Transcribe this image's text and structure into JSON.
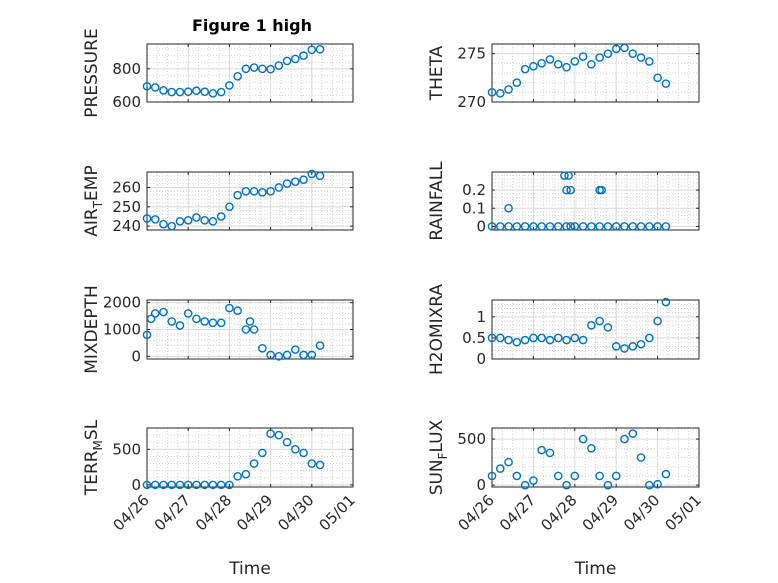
{
  "figure": {
    "title": "Figure 1 high",
    "time_label": "Time"
  },
  "x_ticks": [
    "04/26",
    "04/27",
    "04/28",
    "04/29",
    "04/30",
    "05/01"
  ],
  "chart_data": [
    {
      "type": "scatter",
      "ylabel": "PRESSURE",
      "ylim": [
        600,
        950
      ],
      "yticks": [
        600,
        800
      ],
      "xlim": [
        0,
        5
      ],
      "grid": "on",
      "x": [
        0.0,
        0.2,
        0.4,
        0.6,
        0.8,
        1.0,
        1.2,
        1.4,
        1.6,
        1.8,
        2.0,
        2.2,
        2.4,
        2.6,
        2.8,
        3.0,
        3.2,
        3.4,
        3.6,
        3.8,
        4.0,
        4.2
      ],
      "y": [
        695,
        688,
        670,
        660,
        660,
        662,
        668,
        662,
        652,
        660,
        700,
        755,
        800,
        808,
        800,
        798,
        820,
        848,
        860,
        880,
        915,
        918
      ]
    },
    {
      "type": "scatter",
      "ylabel": "THETA",
      "ylim": [
        270,
        276
      ],
      "yticks": [
        270,
        275
      ],
      "xlim": [
        0,
        5
      ],
      "grid": "on",
      "x": [
        0.0,
        0.2,
        0.4,
        0.6,
        0.8,
        1.0,
        1.2,
        1.4,
        1.6,
        1.8,
        2.0,
        2.2,
        2.4,
        2.6,
        2.8,
        3.0,
        3.2,
        3.4,
        3.6,
        3.8,
        4.0,
        4.2
      ],
      "y": [
        271.0,
        270.9,
        271.3,
        272.0,
        273.4,
        273.7,
        274.0,
        274.4,
        273.9,
        273.6,
        274.2,
        274.7,
        273.9,
        274.6,
        275.0,
        275.5,
        275.6,
        275.0,
        274.6,
        274.2,
        272.5,
        271.9
      ]
    },
    {
      "type": "scatter",
      "ylabel": "AIR_TEMP",
      "ylim": [
        238,
        268
      ],
      "yticks": [
        240,
        250,
        260
      ],
      "xlim": [
        0,
        5
      ],
      "grid": "on",
      "x": [
        0.0,
        0.2,
        0.4,
        0.6,
        0.8,
        1.0,
        1.2,
        1.4,
        1.6,
        1.8,
        2.0,
        2.2,
        2.4,
        2.6,
        2.8,
        3.0,
        3.2,
        3.4,
        3.6,
        3.8,
        4.0,
        4.2
      ],
      "y": [
        244,
        243.5,
        241,
        240,
        242.5,
        243,
        244.5,
        243,
        242.5,
        245,
        250,
        256,
        258,
        258,
        257.5,
        258,
        260,
        262,
        263,
        264,
        267,
        266
      ]
    },
    {
      "type": "scatter",
      "ylabel": "RAINFALL",
      "ylim": [
        -0.02,
        0.3
      ],
      "yticks": [
        0,
        0.1,
        0.2
      ],
      "xlim": [
        0,
        5
      ],
      "grid": "on",
      "x": [
        0.0,
        0.2,
        0.4,
        0.6,
        0.8,
        1.0,
        1.2,
        1.4,
        1.6,
        1.8,
        1.9,
        2.0,
        2.2,
        2.4,
        2.6,
        2.8,
        3.0,
        3.2,
        3.4,
        3.6,
        3.8,
        4.0,
        4.2,
        0.4,
        1.75,
        1.85,
        1.8,
        1.9,
        2.6,
        2.65
      ],
      "y": [
        0,
        0,
        0,
        0,
        0,
        0,
        0,
        0,
        0,
        0,
        0,
        0,
        0,
        0,
        0,
        0,
        0,
        0,
        0,
        0,
        0,
        0,
        0,
        0.1,
        0.28,
        0.28,
        0.2,
        0.2,
        0.2,
        0.2
      ]
    },
    {
      "type": "scatter",
      "ylabel": "MIXDEPTH",
      "ylim": [
        -100,
        2100
      ],
      "yticks": [
        0,
        1000,
        2000
      ],
      "xlim": [
        0,
        5
      ],
      "grid": "on",
      "x": [
        0.0,
        0.1,
        0.2,
        0.4,
        0.6,
        0.8,
        1.0,
        1.2,
        1.4,
        1.6,
        1.8,
        2.0,
        2.2,
        2.4,
        2.5,
        2.6,
        2.8,
        3.0,
        3.2,
        3.4,
        3.6,
        3.8,
        4.0,
        4.2
      ],
      "y": [
        800,
        1400,
        1600,
        1650,
        1300,
        1150,
        1600,
        1400,
        1300,
        1250,
        1250,
        1800,
        1700,
        1000,
        1300,
        1000,
        300,
        50,
        0,
        50,
        250,
        50,
        50,
        400
      ]
    },
    {
      "type": "scatter",
      "ylabel": "H2OMIXRA",
      "ylim": [
        0,
        1.4
      ],
      "yticks": [
        0,
        0.5,
        1
      ],
      "xlim": [
        0,
        5
      ],
      "grid": "on",
      "x": [
        0.0,
        0.2,
        0.4,
        0.6,
        0.8,
        1.0,
        1.2,
        1.4,
        1.6,
        1.8,
        2.0,
        2.2,
        2.4,
        2.6,
        2.8,
        3.0,
        3.2,
        3.4,
        3.6,
        3.8,
        4.0,
        4.2
      ],
      "y": [
        0.5,
        0.5,
        0.45,
        0.4,
        0.45,
        0.5,
        0.5,
        0.45,
        0.5,
        0.45,
        0.5,
        0.45,
        0.8,
        0.9,
        0.75,
        0.3,
        0.25,
        0.3,
        0.35,
        0.5,
        0.9,
        1.35
      ]
    },
    {
      "type": "scatter",
      "ylabel": "TERR_MSL",
      "ylim": [
        -30,
        800
      ],
      "yticks": [
        0,
        500
      ],
      "xlim": [
        0,
        5
      ],
      "grid": "on",
      "x": [
        0.0,
        0.2,
        0.4,
        0.6,
        0.8,
        1.0,
        1.2,
        1.4,
        1.6,
        1.8,
        2.0,
        2.2,
        2.4,
        2.6,
        2.8,
        3.0,
        3.2,
        3.4,
        3.6,
        3.8,
        4.0,
        4.2
      ],
      "y": [
        0,
        0,
        0,
        0,
        0,
        0,
        0,
        0,
        0,
        0,
        0,
        120,
        150,
        300,
        450,
        720,
        700,
        600,
        500,
        450,
        300,
        280
      ]
    },
    {
      "type": "scatter",
      "ylabel": "SUN_FLUX",
      "ylim": [
        -20,
        620
      ],
      "yticks": [
        0,
        500
      ],
      "xlim": [
        0,
        5
      ],
      "grid": "on",
      "x": [
        0.0,
        0.2,
        0.4,
        0.6,
        0.8,
        1.0,
        1.2,
        1.4,
        1.6,
        1.8,
        2.0,
        2.2,
        2.4,
        2.6,
        2.8,
        3.0,
        3.2,
        3.4,
        3.6,
        3.8,
        4.0,
        4.2
      ],
      "y": [
        100,
        180,
        250,
        100,
        0,
        50,
        380,
        350,
        100,
        0,
        100,
        500,
        400,
        100,
        0,
        100,
        500,
        560,
        300,
        0,
        10,
        120
      ]
    }
  ]
}
